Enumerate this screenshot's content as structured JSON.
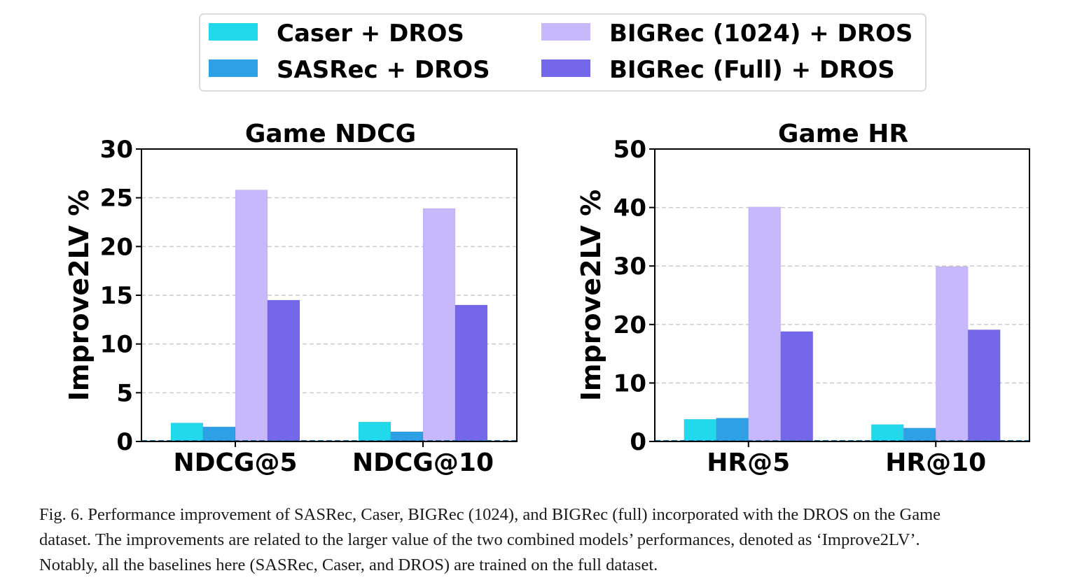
{
  "legend": [
    "Caser + DROS",
    "SASRec + DROS",
    "BIGRec (1024) + DROS",
    "BIGRec (Full) + DROS"
  ],
  "colors": {
    "caser": "#22d9ec",
    "sasrec": "#2da0e6",
    "bigrec_1024": "#c7b8fb",
    "bigrec_full": "#7467ea",
    "grid": "#cccccc",
    "baseline": "#1f77b4"
  },
  "chart_data": [
    {
      "type": "bar",
      "title": "Game NDCG",
      "ylabel": "Improve2LV %",
      "xlabel": "",
      "categories": [
        "NDCG@5",
        "NDCG@10"
      ],
      "ylim": [
        0,
        30
      ],
      "yticks": [
        0,
        5,
        10,
        15,
        20,
        25,
        30
      ],
      "grid": "y, dashed",
      "series": [
        {
          "name": "Caser + DROS",
          "values": [
            1.9,
            2.0
          ]
        },
        {
          "name": "SASRec + DROS",
          "values": [
            1.5,
            1.0
          ]
        },
        {
          "name": "BIGRec (1024) + DROS",
          "values": [
            25.8,
            23.9
          ]
        },
        {
          "name": "BIGRec (Full) + DROS",
          "values": [
            14.5,
            14.0
          ]
        }
      ]
    },
    {
      "type": "bar",
      "title": "Game HR",
      "ylabel": "Improve2LV %",
      "xlabel": "",
      "categories": [
        "HR@5",
        "HR@10"
      ],
      "ylim": [
        0,
        50
      ],
      "yticks": [
        0,
        10,
        20,
        30,
        40,
        50
      ],
      "grid": "y, dashed",
      "series": [
        {
          "name": "Caser + DROS",
          "values": [
            3.8,
            2.9
          ]
        },
        {
          "name": "SASRec + DROS",
          "values": [
            4.0,
            2.3
          ]
        },
        {
          "name": "BIGRec (1024) + DROS",
          "values": [
            40.1,
            29.9
          ]
        },
        {
          "name": "BIGRec (Full) + DROS",
          "values": [
            18.8,
            19.1
          ]
        }
      ]
    }
  ],
  "caption": {
    "line1": "Fig. 6.  Performance improvement of SASRec, Caser, BIGRec (1024), and BIGRec (full) incorporated with the DROS on the Game",
    "line2": "dataset. The improvements are related to the larger value of the two combined models’ performances, denoted as ‘Improve2LV’.",
    "line3": "Notably, all the baselines here (SASRec, Caser, and DROS) are trained on the full dataset."
  }
}
